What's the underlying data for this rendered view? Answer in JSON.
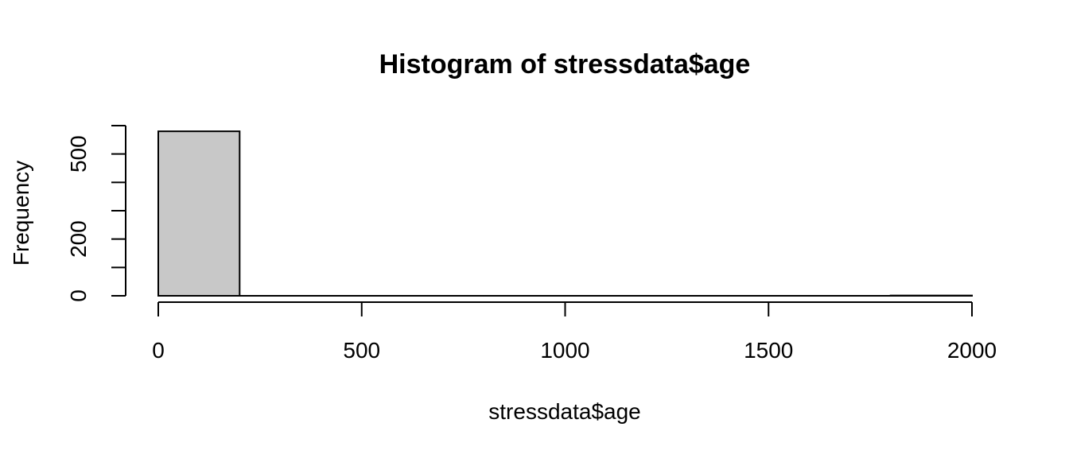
{
  "chart_data": {
    "type": "bar",
    "title": "Histogram of stressdata$age",
    "xlabel": "stressdata$age",
    "ylabel": "Frequency",
    "bins": [
      {
        "start": 0,
        "end": 200,
        "count": 580
      },
      {
        "start": 200,
        "end": 400,
        "count": 0
      },
      {
        "start": 400,
        "end": 600,
        "count": 0
      },
      {
        "start": 600,
        "end": 800,
        "count": 0
      },
      {
        "start": 800,
        "end": 1000,
        "count": 0
      },
      {
        "start": 1000,
        "end": 1200,
        "count": 0
      },
      {
        "start": 1200,
        "end": 1400,
        "count": 0
      },
      {
        "start": 1400,
        "end": 1600,
        "count": 0
      },
      {
        "start": 1600,
        "end": 1800,
        "count": 0
      },
      {
        "start": 1800,
        "end": 2000,
        "count": 1
      }
    ],
    "xlim": [
      0,
      2000
    ],
    "ylim": [
      0,
      600
    ],
    "x_ticks": [
      0,
      500,
      1000,
      1500,
      2000
    ],
    "y_ticks": [
      0,
      100,
      200,
      300,
      400,
      500,
      600
    ],
    "y_tick_labels": [
      {
        "value": 0,
        "label": "0"
      },
      {
        "value": 200,
        "label": "200"
      },
      {
        "value": 500,
        "label": "500"
      }
    ],
    "bar_fill": "#c8c8c8",
    "grid": false
  }
}
